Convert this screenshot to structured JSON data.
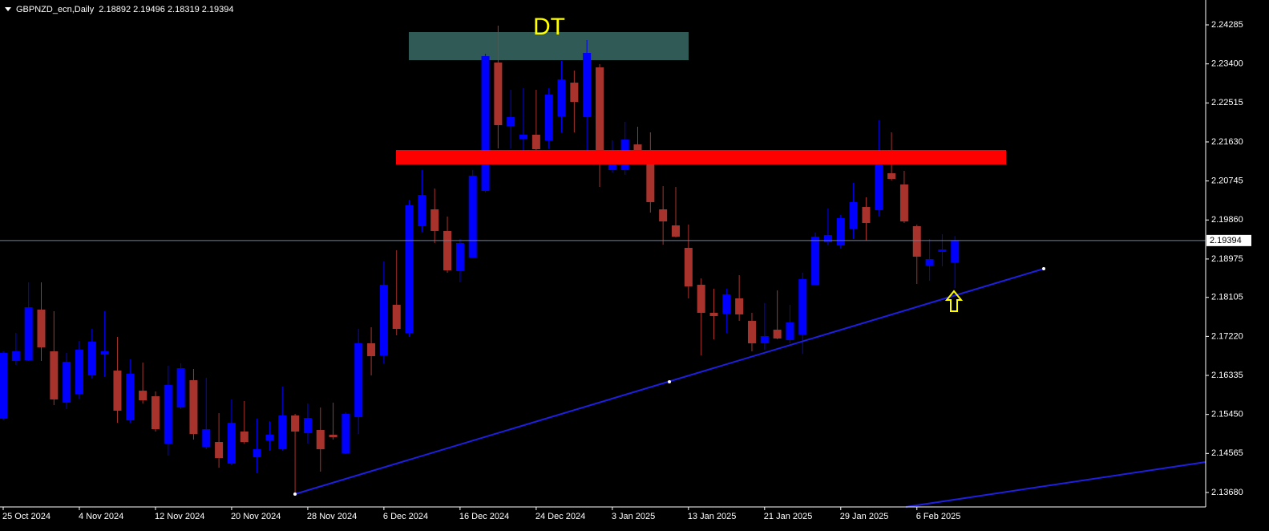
{
  "chart_data": {
    "type": "candlestick",
    "title": "GBPNZD_ecn,Daily  2.18892 2.19496 2.18319 2.19394",
    "annotation": "DT",
    "categories": [
      "25 Oct 2024",
      null,
      null,
      null,
      null,
      null,
      "4 Nov 2024",
      null,
      null,
      null,
      null,
      null,
      "12 Nov 2024",
      null,
      null,
      null,
      null,
      null,
      "20 Nov 2024",
      null,
      null,
      null,
      null,
      null,
      "28 Nov 2024",
      null,
      null,
      null,
      null,
      null,
      "6 Dec 2024",
      null,
      null,
      null,
      null,
      null,
      "16 Dec 2024",
      null,
      null,
      null,
      null,
      null,
      "24 Dec 2024",
      null,
      null,
      null,
      null,
      null,
      "3 Jan 2025",
      null,
      null,
      null,
      null,
      null,
      "13 Jan 2025",
      null,
      null,
      null,
      null,
      null,
      "21 Jan 2025",
      null,
      null,
      null,
      null,
      null,
      "29 Jan 2025",
      null,
      null,
      null,
      null,
      null,
      "6 Feb 2025",
      null,
      null,
      null
    ],
    "open": [
      2.15353,
      2.16663,
      2.16681,
      2.17827,
      2.16881,
      2.15717,
      2.15917,
      2.16335,
      2.16808,
      2.16444,
      2.15316,
      2.15989,
      2.15862,
      2.14789,
      2.15607,
      2.16226,
      2.14716,
      2.14825,
      2.14334,
      2.15062,
      2.1448,
      2.14862,
      2.14661,
      2.15426,
      2.15025,
      2.15098,
      2.14989,
      2.14571,
      2.15389,
      2.17063,
      2.1679,
      2.17936,
      2.17299,
      2.19719,
      2.20101,
      2.1961,
      2.187,
      2.19009,
      2.20519,
      2.2343,
      2.21993,
      2.21702,
      2.21793,
      2.21665,
      2.22211,
      2.22975,
      2.22193,
      2.23321,
      2.20992,
      2.20992,
      2.21574,
      2.21265,
      2.20101,
      2.19737,
      2.19228,
      2.18391,
      2.17754,
      2.17736,
      2.18082,
      2.17572,
      2.17063,
      2.17372,
      2.17136,
      2.17263,
      2.18391,
      2.19355,
      2.19282,
      2.19664,
      2.20155,
      2.20083,
      2.2092,
      2.20665,
      2.19719,
      2.18827,
      2.19137,
      2.18892
    ],
    "high": [
      2.16881,
      2.17299,
      2.18445,
      2.18445,
      2.17791,
      2.16845,
      2.17117,
      2.1739,
      2.17791,
      2.17208,
      2.16699,
      2.16626,
      2.15971,
      2.16553,
      2.16608,
      2.16481,
      2.16281,
      2.1548,
      2.15789,
      2.15753,
      2.15353,
      2.15298,
      2.1608,
      2.15462,
      2.15698,
      2.15607,
      2.15717,
      2.15498,
      2.1739,
      2.17427,
      2.18918,
      2.19173,
      2.20319,
      2.20992,
      2.20574,
      2.19937,
      2.19428,
      2.20992,
      2.2363,
      2.24267,
      2.22811,
      2.22848,
      2.22811,
      2.22848,
      2.23466,
      2.23248,
      2.23939,
      2.23394,
      2.21665,
      2.22084,
      2.21975,
      2.21847,
      2.20628,
      2.2061,
      2.19755,
      2.18536,
      2.183,
      2.183,
      2.18609,
      2.17754,
      2.17972,
      2.18263,
      2.17936,
      2.18664,
      2.19573,
      2.20119,
      2.19974,
      2.20701,
      2.20374,
      2.2212,
      2.21847,
      2.20974,
      2.19755,
      2.19428,
      2.19537,
      2.19496
    ],
    "low": [
      2.15316,
      2.16572,
      2.16663,
      2.16663,
      2.15662,
      2.15571,
      2.15808,
      2.16262,
      2.16299,
      2.15262,
      2.15262,
      2.15698,
      2.15062,
      2.14516,
      2.15571,
      2.1488,
      2.14661,
      2.14243,
      2.14298,
      2.14789,
      2.14116,
      2.14625,
      2.14625,
      2.13643,
      2.14789,
      2.14152,
      2.1488,
      2.14552,
      2.15007,
      2.16335,
      2.16608,
      2.17245,
      2.17208,
      2.19592,
      2.19337,
      2.18664,
      2.18445,
      2.19009,
      2.20483,
      2.21483,
      2.21483,
      2.21429,
      2.21447,
      2.21483,
      2.21847,
      2.21847,
      2.21356,
      2.2061,
      2.20938,
      2.20883,
      2.21156,
      2.20028,
      2.193,
      2.19464,
      2.18082,
      2.1679,
      2.17154,
      2.17299,
      2.17572,
      2.16881,
      2.16917,
      2.17154,
      2.17063,
      2.16826,
      2.18391,
      2.193,
      2.19209,
      2.19428,
      2.19391,
      2.19937,
      2.20756,
      2.19792,
      2.18409,
      2.18482,
      2.18809,
      2.18319
    ],
    "close": [
      2.16845,
      2.16881,
      2.17881,
      2.16972,
      2.15789,
      2.16644,
      2.16917,
      2.17099,
      2.16881,
      2.15535,
      2.16372,
      2.15771,
      2.15116,
      2.16117,
      2.16499,
      2.15007,
      2.15116,
      2.14461,
      2.15262,
      2.14825,
      2.14661,
      2.14989,
      2.15426,
      2.15062,
      2.15371,
      2.14661,
      2.14934,
      2.15462,
      2.17063,
      2.16772,
      2.18391,
      2.1739,
      2.20192,
      2.20428,
      2.1961,
      2.18718,
      2.19337,
      2.20865,
      2.23576,
      2.22011,
      2.22193,
      2.21793,
      2.21465,
      2.22702,
      2.23048,
      2.22539,
      2.23648,
      2.2112,
      2.21156,
      2.21684,
      2.21211,
      2.20265,
      2.19828,
      2.19482,
      2.18354,
      2.17754,
      2.17681,
      2.18173,
      2.17718,
      2.17063,
      2.17227,
      2.17172,
      2.17536,
      2.18518,
      2.19482,
      2.19519,
      2.19901,
      2.20265,
      2.19792,
      2.2112,
      2.20792,
      2.19828,
      2.19028,
      2.18973,
      2.19191,
      2.19394
    ],
    "up_color": "#0000ff",
    "down_color": "#a8332c",
    "price_line": 2.19394,
    "ylim": [
      2.13352,
      2.24849
    ],
    "yticks": [
      2.24285,
      {
        "value": 2.234,
        "label": "2.23400"
      },
      2.22515,
      {
        "value": 2.2163,
        "label": "2.21630"
      },
      2.20745,
      {
        "value": 2.1986,
        "label": "2.19860"
      },
      2.18975,
      2.18105,
      {
        "value": 2.1722,
        "label": "2.17220"
      },
      2.16335,
      {
        "value": 2.1545,
        "label": "2.15450"
      },
      2.14565,
      {
        "value": 2.1368,
        "label": "2.13680"
      }
    ],
    "grid": false
  }
}
